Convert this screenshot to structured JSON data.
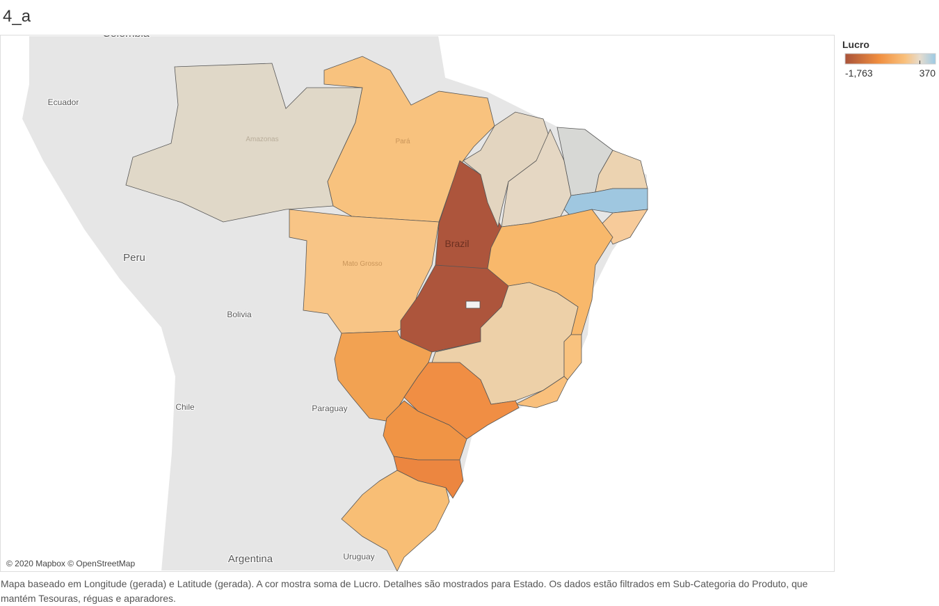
{
  "title": "4_a",
  "legend": {
    "title": "Lucro",
    "range": [
      {
        "value": -1763,
        "label": "-1,763"
      },
      {
        "value": 370,
        "label": "370"
      }
    ]
  },
  "map": {
    "labels": [
      "Colombia",
      "Ecuador",
      "Peru",
      "Bolivia",
      "Chile",
      "Paraguay",
      "Argentina",
      "Uruguay",
      "Brazil",
      "Amazonas",
      "Pará",
      "Mato Grosso"
    ]
  },
  "attribution": "© 2020 Mapbox © OpenStreetMap",
  "caption": "Mapa baseado em Longitude (gerada) e Latitude (gerada).  A cor mostra soma de Lucro.  Detalhes são mostrados para Estado. Os dados estão filtrados em Sub-Categoria do Produto, que mantém Tesouras, réguas e aparadores."
}
